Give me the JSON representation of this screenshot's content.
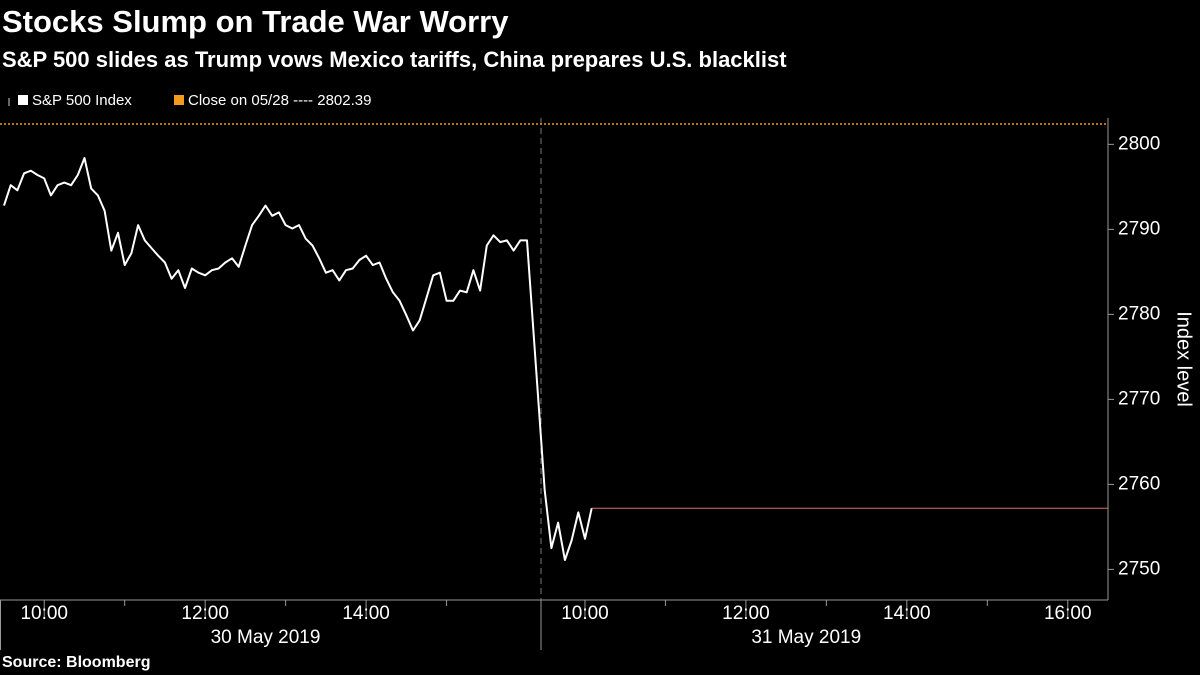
{
  "chart_data": {
    "type": "line",
    "title": "Stocks Slump on Trade War Worry",
    "subtitle": "S&P 500 slides as Trump vows Mexico tariffs, China prepares U.S. blacklist",
    "source": "Source: Bloomberg",
    "y_label": "Index level",
    "x": [
      "2019-05-30 09:30",
      "2019-05-30 09:35",
      "2019-05-30 09:40",
      "2019-05-30 09:45",
      "2019-05-30 09:50",
      "2019-05-30 09:55",
      "2019-05-30 10:00",
      "2019-05-30 10:05",
      "2019-05-30 10:10",
      "2019-05-30 10:15",
      "2019-05-30 10:20",
      "2019-05-30 10:25",
      "2019-05-30 10:30",
      "2019-05-30 10:35",
      "2019-05-30 10:40",
      "2019-05-30 10:45",
      "2019-05-30 10:50",
      "2019-05-30 10:55",
      "2019-05-30 11:00",
      "2019-05-30 11:05",
      "2019-05-30 11:10",
      "2019-05-30 11:15",
      "2019-05-30 11:20",
      "2019-05-30 11:25",
      "2019-05-30 11:30",
      "2019-05-30 11:35",
      "2019-05-30 11:40",
      "2019-05-30 11:45",
      "2019-05-30 11:50",
      "2019-05-30 11:55",
      "2019-05-30 12:00",
      "2019-05-30 12:05",
      "2019-05-30 12:10",
      "2019-05-30 12:15",
      "2019-05-30 12:20",
      "2019-05-30 12:25",
      "2019-05-30 12:30",
      "2019-05-30 12:35",
      "2019-05-30 12:40",
      "2019-05-30 12:45",
      "2019-05-30 12:50",
      "2019-05-30 12:55",
      "2019-05-30 13:00",
      "2019-05-30 13:05",
      "2019-05-30 13:10",
      "2019-05-30 13:15",
      "2019-05-30 13:20",
      "2019-05-30 13:25",
      "2019-05-30 13:30",
      "2019-05-30 13:35",
      "2019-05-30 13:40",
      "2019-05-30 13:45",
      "2019-05-30 13:50",
      "2019-05-30 13:55",
      "2019-05-30 14:00",
      "2019-05-30 14:05",
      "2019-05-30 14:10",
      "2019-05-30 14:15",
      "2019-05-30 14:20",
      "2019-05-30 14:25",
      "2019-05-30 14:30",
      "2019-05-30 14:35",
      "2019-05-30 14:40",
      "2019-05-30 14:45",
      "2019-05-30 14:50",
      "2019-05-30 14:55",
      "2019-05-30 15:00",
      "2019-05-30 15:05",
      "2019-05-30 15:10",
      "2019-05-30 15:15",
      "2019-05-30 15:20",
      "2019-05-30 15:25",
      "2019-05-30 15:30",
      "2019-05-30 15:35",
      "2019-05-30 15:40",
      "2019-05-30 15:45",
      "2019-05-30 15:50",
      "2019-05-30 15:55",
      "2019-05-30 16:00",
      "2019-05-31 09:30",
      "2019-05-31 09:35",
      "2019-05-31 09:40",
      "2019-05-31 09:45",
      "2019-05-31 09:50",
      "2019-05-31 09:55",
      "2019-05-31 10:00",
      "2019-05-31 10:05"
    ],
    "series": [
      {
        "name": "S&P 500 Index",
        "color": "#ffffff",
        "values": [
          2792.8,
          2795.2,
          2794.6,
          2796.6,
          2796.9,
          2796.4,
          2796.0,
          2794.0,
          2795.2,
          2795.5,
          2795.2,
          2796.4,
          2798.4,
          2794.8,
          2794.0,
          2792.2,
          2787.5,
          2789.6,
          2785.8,
          2787.2,
          2790.5,
          2788.7,
          2787.8,
          2786.9,
          2786.1,
          2784.2,
          2785.2,
          2783.1,
          2785.4,
          2784.9,
          2784.6,
          2785.2,
          2785.4,
          2786.1,
          2786.6,
          2785.6,
          2788.1,
          2790.5,
          2791.6,
          2792.8,
          2791.6,
          2792.0,
          2790.5,
          2790.1,
          2790.5,
          2788.9,
          2788.1,
          2786.6,
          2784.9,
          2785.2,
          2784.0,
          2785.2,
          2785.4,
          2786.4,
          2786.9,
          2785.8,
          2786.1,
          2784.2,
          2782.6,
          2781.6,
          2779.9,
          2778.1,
          2779.3,
          2781.9,
          2784.6,
          2784.9,
          2781.6,
          2781.6,
          2782.8,
          2782.6,
          2785.2,
          2782.8,
          2788.1,
          2789.3,
          2788.5,
          2788.7,
          2787.5,
          2788.7,
          2788.7,
          2759.3,
          2752.5,
          2755.5,
          2751.1,
          2753.4,
          2756.7,
          2753.6,
          2757.2
        ]
      }
    ],
    "reference": {
      "name": "Close on 05/28 ---- 2802.39",
      "value": 2802.39,
      "color": "#f29b1d"
    },
    "last_value_color": "#e0735a",
    "dates": [
      "30 May 2019",
      "31 May 2019"
    ],
    "xlim": [
      "2019-05-30 09:30",
      "2019-05-31 16:30"
    ],
    "xticks": [
      {
        "value": "2019-05-30 10:00",
        "label": "10:00"
      },
      {
        "value": "2019-05-30 12:00",
        "label": "12:00"
      },
      {
        "value": "2019-05-30 14:00",
        "label": "14:00"
      },
      {
        "value": "2019-05-31 10:00",
        "label": "10:00"
      },
      {
        "value": "2019-05-31 12:00",
        "label": "12:00"
      },
      {
        "value": "2019-05-31 14:00",
        "label": "14:00"
      },
      {
        "value": "2019-05-31 16:00",
        "label": "16:00"
      }
    ],
    "xminorticks": [
      "2019-05-30 11:00",
      "2019-05-30 13:00",
      "2019-05-30 15:00",
      "2019-05-31 11:00",
      "2019-05-31 13:00",
      "2019-05-31 15:00"
    ],
    "ylim": [
      2746.4,
      2803.1
    ],
    "yticks": [
      2750,
      2760,
      2770,
      2780,
      2790,
      2800
    ],
    "grid": false
  }
}
